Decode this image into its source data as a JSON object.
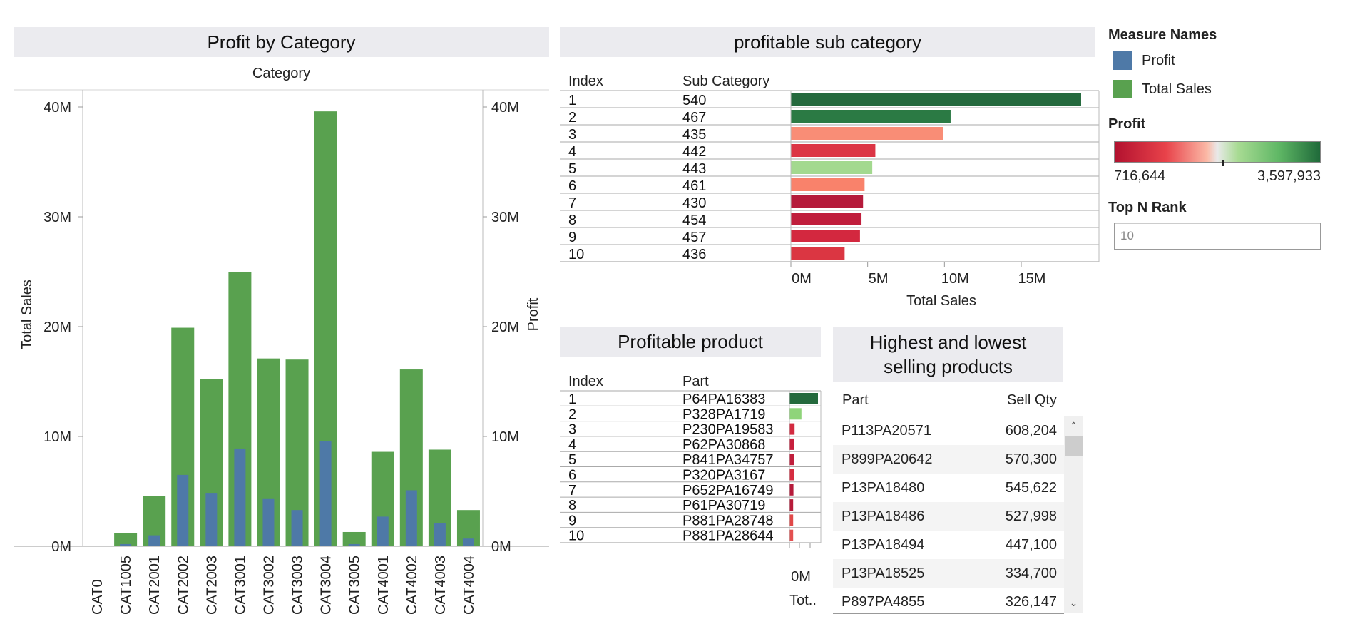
{
  "colors": {
    "profit": "#4e79a7",
    "total_sales": "#59a14f",
    "title_bg": "#ebebef"
  },
  "legend": {
    "measure_names_title": "Measure Names",
    "measure_items": [
      {
        "label": "Profit",
        "color": "#4e79a7"
      },
      {
        "label": "Total Sales",
        "color": "#59a14f"
      }
    ],
    "profit_title": "Profit",
    "profit_min": "716,644",
    "profit_max": "3,597,933",
    "topn_title": "Top N Rank",
    "topn_value": "10"
  },
  "chart_data": [
    {
      "type": "bar",
      "title": "Profit by Category",
      "column_header": "Category",
      "ylabel": "Total Sales",
      "y2label": "Profit",
      "ylim": [
        0,
        40000000
      ],
      "yticks": [
        "0M",
        "10M",
        "20M",
        "30M",
        "40M"
      ],
      "categories": [
        "CAT0",
        "CAT1005",
        "CAT2001",
        "CAT2002",
        "CAT2003",
        "CAT3001",
        "CAT3002",
        "CAT3003",
        "CAT3004",
        "CAT3005",
        "CAT4001",
        "CAT4002",
        "CAT4003",
        "CAT4004"
      ],
      "series": [
        {
          "name": "Total Sales",
          "axis": "left",
          "color": "#59a14f",
          "values": [
            0,
            1200000,
            4600000,
            19900000,
            15200000,
            25000000,
            17100000,
            17000000,
            39600000,
            1300000,
            8600000,
            16100000,
            8800000,
            3300000
          ]
        },
        {
          "name": "Profit",
          "axis": "right",
          "color": "#4e79a7",
          "values": [
            0,
            200000,
            1000000,
            6500000,
            4800000,
            8900000,
            4300000,
            3300000,
            9600000,
            200000,
            2700000,
            5100000,
            2100000,
            700000
          ]
        }
      ]
    },
    {
      "type": "bar",
      "orientation": "horizontal",
      "title": "profitable sub category",
      "col_index": "Index",
      "col_label": "Sub Category",
      "xlabel": "Total Sales",
      "xlim": [
        0,
        20000000
      ],
      "xticks": [
        "0M",
        "5M",
        "10M",
        "15M"
      ],
      "rows": [
        {
          "index": "1",
          "label": "540",
          "value": 18900000,
          "color": "#24693d"
        },
        {
          "index": "2",
          "label": "467",
          "value": 10400000,
          "color": "#2b7a44"
        },
        {
          "index": "3",
          "label": "435",
          "value": 9900000,
          "color": "#f98d76"
        },
        {
          "index": "4",
          "label": "442",
          "value": 5500000,
          "color": "#dc3545"
        },
        {
          "index": "5",
          "label": "443",
          "value": 5300000,
          "color": "#a3d98f"
        },
        {
          "index": "6",
          "label": "461",
          "value": 4800000,
          "color": "#f9826b"
        },
        {
          "index": "7",
          "label": "430",
          "value": 4700000,
          "color": "#b51a3a"
        },
        {
          "index": "8",
          "label": "454",
          "value": 4600000,
          "color": "#c01e3c"
        },
        {
          "index": "9",
          "label": "457",
          "value": 4500000,
          "color": "#d3283f"
        },
        {
          "index": "10",
          "label": "436",
          "value": 3500000,
          "color": "#db3642"
        }
      ]
    },
    {
      "type": "bar",
      "orientation": "horizontal",
      "title": "Profitable product",
      "col_index": "Index",
      "col_label": "Part",
      "xlabel": "Tot..",
      "xlim": [
        0,
        1000000
      ],
      "xticks": [
        "0M"
      ],
      "rows": [
        {
          "index": "1",
          "label": "P64PA16383",
          "value": 1000000,
          "color": "#24693d"
        },
        {
          "index": "2",
          "label": "P328PA1719",
          "value": 420000,
          "color": "#8fd47a"
        },
        {
          "index": "3",
          "label": "P230PA19583",
          "value": 180000,
          "color": "#d32a40"
        },
        {
          "index": "4",
          "label": "P62PA30868",
          "value": 170000,
          "color": "#c71f3d"
        },
        {
          "index": "5",
          "label": "P841PA34757",
          "value": 160000,
          "color": "#c01e3c"
        },
        {
          "index": "6",
          "label": "P320PA3167",
          "value": 150000,
          "color": "#d62d41"
        },
        {
          "index": "7",
          "label": "P652PA16749",
          "value": 140000,
          "color": "#b51a3a"
        },
        {
          "index": "8",
          "label": "P61PA30719",
          "value": 130000,
          "color": "#b71b3a"
        },
        {
          "index": "9",
          "label": "P881PA28748",
          "value": 130000,
          "color": "#e04848"
        },
        {
          "index": "10",
          "label": "P881PA28644",
          "value": 130000,
          "color": "#e35050"
        }
      ]
    },
    {
      "type": "table",
      "title_line1": "Highest and lowest",
      "title_line2": "selling products",
      "columns": [
        "Part",
        "Sell Qty"
      ],
      "rows": [
        [
          "P113PA20571",
          "608,204"
        ],
        [
          "P899PA20642",
          "570,300"
        ],
        [
          "P13PA18480",
          "545,622"
        ],
        [
          "P13PA18486",
          "527,998"
        ],
        [
          "P13PA18494",
          "447,100"
        ],
        [
          "P13PA18525",
          "334,700"
        ],
        [
          "P897PA4855",
          "326,147"
        ]
      ]
    }
  ]
}
